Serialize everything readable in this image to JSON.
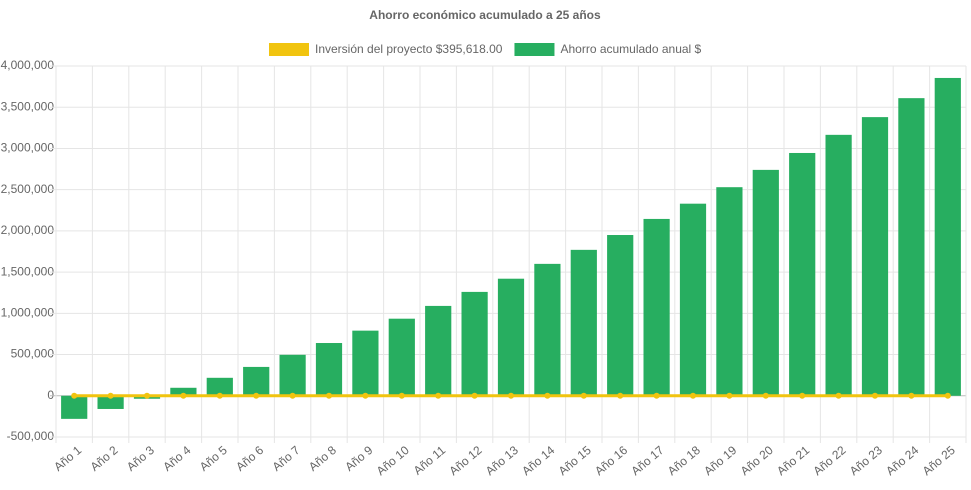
{
  "chart_data": {
    "type": "bar",
    "title": "Ahorro económico acumulado a 25 años",
    "categories": [
      "Año 1",
      "Año 2",
      "Año 3",
      "Año 4",
      "Año 5",
      "Año 6",
      "Año 7",
      "Año 8",
      "Año 9",
      "Año 10",
      "Año 11",
      "Año 12",
      "Año 13",
      "Año 14",
      "Año 15",
      "Año 16",
      "Año 17",
      "Año 18",
      "Año 19",
      "Año 20",
      "Año 21",
      "Año 22",
      "Año 23",
      "Año 24",
      "Año 25"
    ],
    "series": [
      {
        "name": "Inversión del proyecto $395,618.00",
        "type": "line",
        "color": "#f1c40f",
        "values": [
          0,
          0,
          0,
          0,
          0,
          0,
          0,
          0,
          0,
          0,
          0,
          0,
          0,
          0,
          0,
          0,
          0,
          0,
          0,
          0,
          0,
          0,
          0,
          0,
          0
        ]
      },
      {
        "name": "Ahorro acumulado anual $",
        "type": "bar",
        "color": "#27ae60",
        "values": [
          -280000,
          -160000,
          -36000,
          97000,
          218000,
          350000,
          497000,
          640000,
          790000,
          935000,
          1090000,
          1260000,
          1420000,
          1600000,
          1770000,
          1950000,
          2145000,
          2330000,
          2530000,
          2740000,
          2945000,
          3165000,
          3380000,
          3610000,
          3855000
        ]
      }
    ],
    "ylim": [
      -500000,
      4000000
    ],
    "yticks": [
      {
        "value": -500000,
        "label": "-500,000"
      },
      0,
      {
        "value": 500000,
        "label": "500,000"
      },
      {
        "value": 1000000,
        "label": "1,000,000"
      },
      {
        "value": 1500000,
        "label": "1,500,000"
      },
      {
        "value": 2000000,
        "label": "2,000,000"
      },
      {
        "value": 2500000,
        "label": "2,500,000"
      },
      {
        "value": 3000000,
        "label": "3,000,000"
      },
      {
        "value": 3500000,
        "label": "3,500,000"
      },
      {
        "value": 4000000,
        "label": "4,000,000"
      }
    ],
    "grid": true,
    "legend": "top"
  }
}
